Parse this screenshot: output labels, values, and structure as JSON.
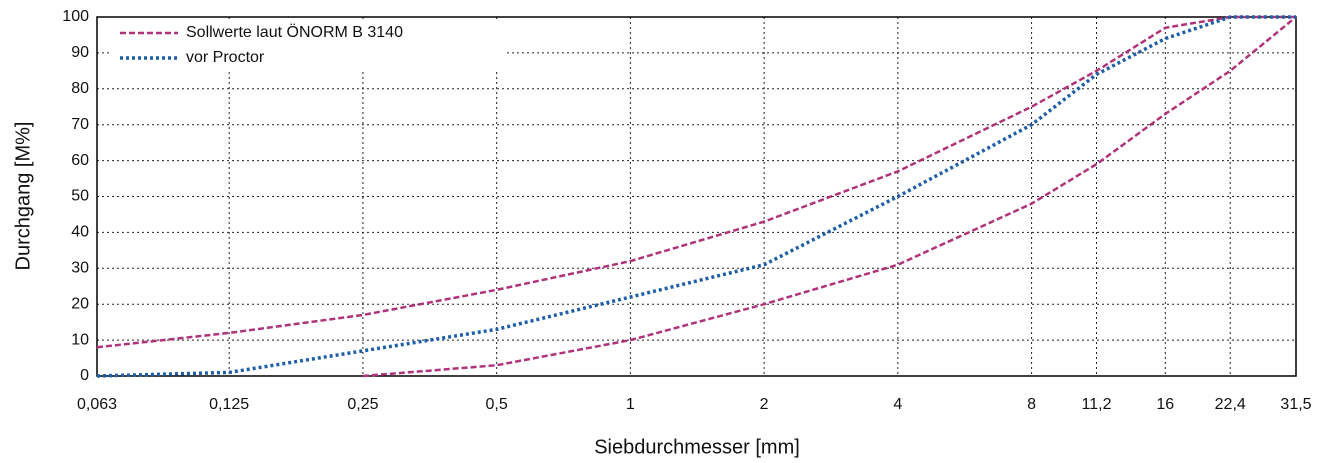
{
  "chart_data": {
    "type": "line",
    "xscale": "log",
    "xlabel": "Siebdurchmesser [mm]",
    "ylabel": "Durchgang [M%]",
    "x": [
      0.063,
      0.125,
      0.25,
      0.5,
      1,
      2,
      4,
      8,
      11.2,
      16,
      22.4,
      31.5
    ],
    "series": [
      {
        "name": "Sollwerte laut ÖNORM B 3140",
        "color": "#b0337a",
        "style": "dashed",
        "values": [
          8,
          12,
          17,
          24,
          32,
          43,
          57,
          75,
          85,
          97,
          100,
          100
        ]
      },
      {
        "color": "#b0337a",
        "style": "dashed",
        "values": [
          null,
          null,
          0,
          3,
          10,
          20,
          31,
          48,
          59,
          73,
          85,
          100
        ]
      },
      {
        "name": "vor Proctor",
        "color": "#1f5fa8",
        "style": "dotted",
        "values": [
          0,
          1,
          7,
          13,
          22,
          31,
          50,
          70,
          84,
          94,
          100,
          100
        ]
      }
    ],
    "xlim": [
      0.063,
      31.5
    ],
    "xticks": [
      {
        "value": 0.063,
        "label": "0,063"
      },
      {
        "value": 0.125,
        "label": "0,125"
      },
      {
        "value": 0.25,
        "label": "0,25"
      },
      {
        "value": 0.5,
        "label": "0,5"
      },
      1,
      2,
      4,
      8,
      {
        "value": 11.2,
        "label": "11,2"
      },
      16,
      {
        "value": 22.4,
        "label": "22,4"
      },
      {
        "value": 31.5,
        "label": "31,5"
      }
    ],
    "ylim": [
      0,
      100
    ],
    "yticks": [
      0,
      10,
      20,
      30,
      40,
      50,
      60,
      70,
      80,
      90,
      100
    ],
    "grid": true,
    "legend": "upper left"
  }
}
